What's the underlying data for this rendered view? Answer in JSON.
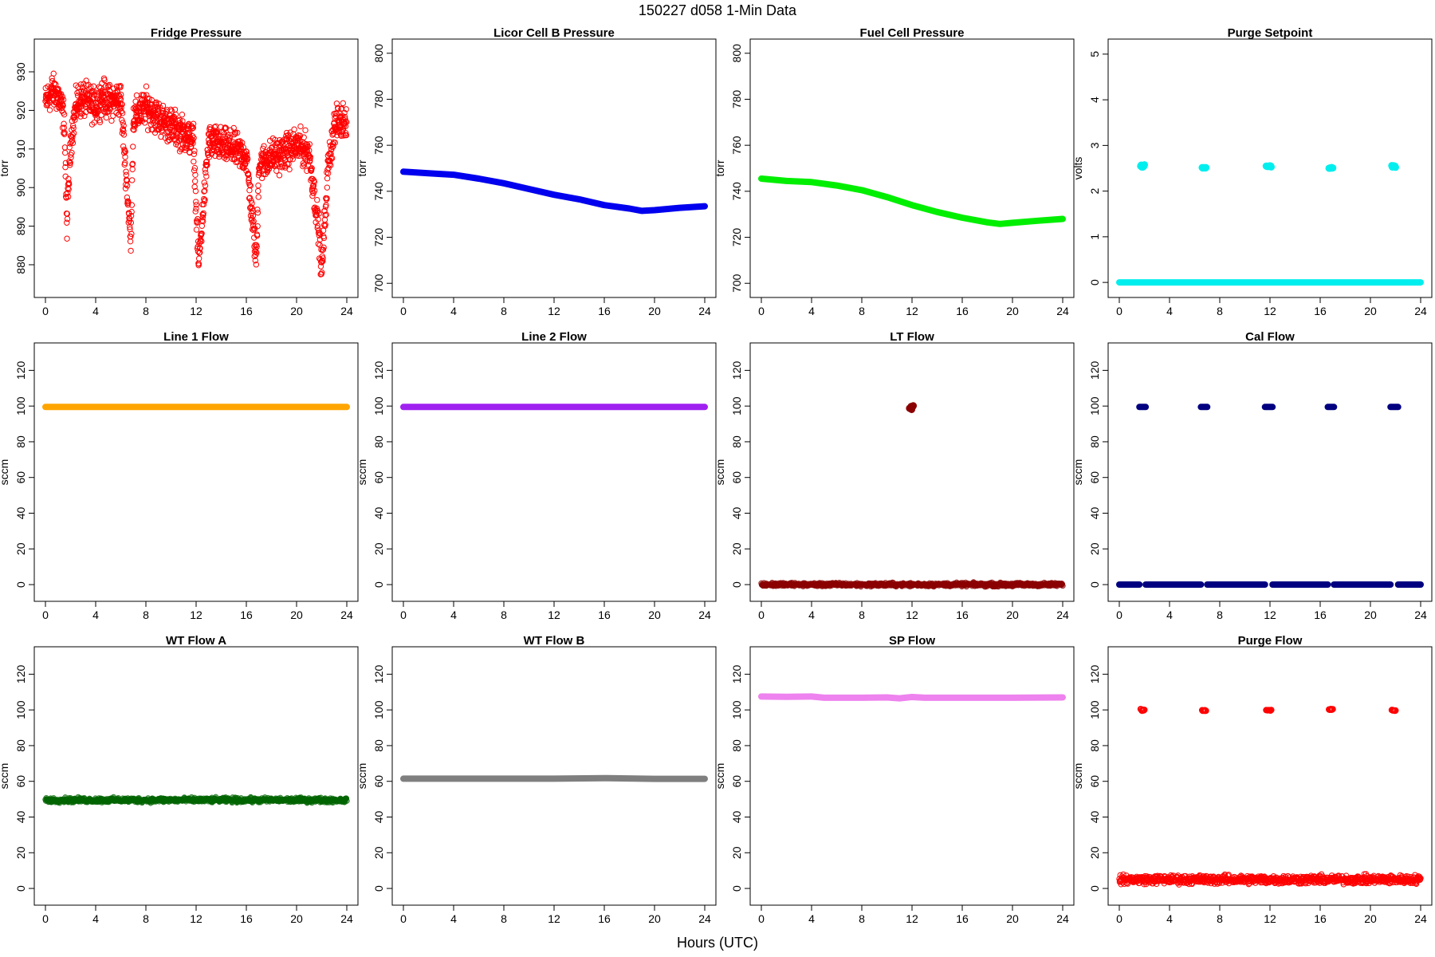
{
  "figure": {
    "title": "150227   d058   1-Min Data",
    "xlabel": "Hours (UTC)"
  },
  "chart_data": [
    {
      "type": "scatter",
      "title": "Fridge Pressure",
      "ylabel": "torr",
      "xlim": [
        0,
        24
      ],
      "ylim": [
        874,
        936
      ],
      "xticks": [
        0,
        4,
        8,
        12,
        16,
        20,
        24
      ],
      "yticks": [
        880,
        890,
        900,
        910,
        920,
        930
      ],
      "color": "#ff0000",
      "marker": "open-circle",
      "series": [
        {
          "x": [
            0.0,
            0.5,
            1.0,
            1.5,
            1.7,
            2.0,
            2.5,
            3.0,
            4.0,
            4.5,
            5.0,
            6.0,
            6.5,
            6.8,
            7.0,
            8.0,
            9.0,
            10.0,
            11.0,
            11.8,
            12.0,
            12.2,
            13.0,
            14.0,
            15.0,
            16.0,
            16.8,
            17.0,
            18.0,
            19.0,
            20.0,
            21.0,
            21.8,
            22.0,
            22.5,
            23.0,
            24.0
          ],
          "y": [
            922,
            925,
            924,
            918,
            890,
            912,
            922,
            923,
            921,
            924,
            922,
            923,
            900,
            885,
            918,
            921,
            918,
            916,
            914,
            912,
            895,
            880,
            912,
            911,
            910,
            908,
            881,
            906,
            908,
            909,
            911,
            909,
            888,
            878,
            905,
            916,
            918
          ]
        }
      ]
    },
    {
      "type": "scatter",
      "title": "Licor Cell B Pressure",
      "ylabel": "torr",
      "xlim": [
        0,
        24
      ],
      "ylim": [
        698,
        802
      ],
      "xticks": [
        0,
        4,
        8,
        12,
        16,
        20,
        24
      ],
      "yticks": [
        700,
        720,
        740,
        760,
        780,
        800
      ],
      "color": "#0000ee",
      "marker": "filled-line",
      "series": [
        {
          "x": [
            0,
            2,
            4,
            6,
            8,
            10,
            12,
            14,
            16,
            18,
            19,
            20,
            22,
            24
          ],
          "y": [
            748.5,
            747.8,
            747.2,
            745.5,
            743.5,
            741.0,
            738.5,
            736.5,
            734.0,
            732.5,
            731.5,
            731.8,
            732.8,
            733.5
          ]
        }
      ]
    },
    {
      "type": "scatter",
      "title": "Fuel Cell Pressure",
      "ylabel": "torr",
      "xlim": [
        0,
        24
      ],
      "ylim": [
        698,
        802
      ],
      "xticks": [
        0,
        4,
        8,
        12,
        16,
        20,
        24
      ],
      "yticks": [
        700,
        720,
        740,
        760,
        780,
        800
      ],
      "color": "#00ee00",
      "marker": "filled-line",
      "series": [
        {
          "x": [
            0,
            2,
            4,
            6,
            8,
            10,
            12,
            14,
            16,
            18,
            19,
            20,
            22,
            24
          ],
          "y": [
            745.5,
            744.5,
            744.0,
            742.5,
            740.5,
            737.5,
            734.0,
            731.0,
            728.5,
            726.5,
            725.8,
            726.3,
            727.2,
            728.0
          ]
        }
      ]
    },
    {
      "type": "scatter",
      "title": "Purge Setpoint",
      "ylabel": "volts",
      "xlim": [
        0,
        24
      ],
      "ylim": [
        -0.12,
        5.12
      ],
      "xticks": [
        0,
        4,
        8,
        12,
        16,
        20,
        24
      ],
      "yticks": [
        0,
        1,
        2,
        3,
        4,
        5
      ],
      "color": "#00eeee",
      "marker": "filled-line",
      "series": [
        {
          "x": [
            0,
            24
          ],
          "y": [
            0,
            0
          ]
        },
        {
          "x": [
            1.7,
            2.0
          ],
          "y": [
            2.52,
            2.58
          ],
          "style": "cluster"
        },
        {
          "x": [
            6.6,
            6.9
          ],
          "y": [
            2.5,
            2.52
          ],
          "style": "cluster"
        },
        {
          "x": [
            11.7,
            12.1
          ],
          "y": [
            2.52,
            2.56
          ],
          "style": "cluster"
        },
        {
          "x": [
            16.7,
            17.0
          ],
          "y": [
            2.5,
            2.52
          ],
          "style": "cluster"
        },
        {
          "x": [
            21.7,
            22.0
          ],
          "y": [
            2.52,
            2.56
          ],
          "style": "cluster"
        }
      ]
    },
    {
      "type": "scatter",
      "title": "Line 1 Flow",
      "ylabel": "sccm",
      "xlim": [
        0,
        24
      ],
      "ylim": [
        -4,
        130
      ],
      "xticks": [
        0,
        4,
        8,
        12,
        16,
        20,
        24
      ],
      "yticks": [
        0,
        20,
        40,
        60,
        80,
        100,
        120
      ],
      "color": "#ffa500",
      "marker": "filled-line",
      "series": [
        {
          "x": [
            0,
            24
          ],
          "y": [
            99.5,
            99.5
          ]
        }
      ]
    },
    {
      "type": "scatter",
      "title": "Line 2 Flow",
      "ylabel": "sccm",
      "xlim": [
        0,
        24
      ],
      "ylim": [
        -4,
        130
      ],
      "xticks": [
        0,
        4,
        8,
        12,
        16,
        20,
        24
      ],
      "yticks": [
        0,
        20,
        40,
        60,
        80,
        100,
        120
      ],
      "color": "#a020f0",
      "marker": "filled-line",
      "series": [
        {
          "x": [
            0,
            24
          ],
          "y": [
            99.5,
            99.5
          ]
        }
      ]
    },
    {
      "type": "scatter",
      "title": "LT Flow",
      "ylabel": "sccm",
      "xlim": [
        0,
        24
      ],
      "ylim": [
        -4,
        130
      ],
      "xticks": [
        0,
        4,
        8,
        12,
        16,
        20,
        24
      ],
      "yticks": [
        0,
        20,
        40,
        60,
        80,
        100,
        120
      ],
      "color": "#8b0000",
      "marker": "filled-line",
      "series": [
        {
          "x": [
            0,
            24
          ],
          "y": [
            0,
            0
          ],
          "style": "band",
          "spread": 1.5
        },
        {
          "x": [
            11.8,
            12.1
          ],
          "y": [
            98,
            101
          ],
          "style": "cluster"
        }
      ]
    },
    {
      "type": "scatter",
      "title": "Cal Flow",
      "ylabel": "sccm",
      "xlim": [
        0,
        24
      ],
      "ylim": [
        -4,
        130
      ],
      "xticks": [
        0,
        4,
        8,
        12,
        16,
        20,
        24
      ],
      "yticks": [
        0,
        20,
        40,
        60,
        80,
        100,
        120
      ],
      "color": "#000080",
      "marker": "filled-line",
      "series": [
        {
          "x": [
            0,
            1.6
          ],
          "y": [
            0,
            0
          ]
        },
        {
          "x": [
            2.1,
            6.5
          ],
          "y": [
            0,
            0
          ]
        },
        {
          "x": [
            7.0,
            11.6
          ],
          "y": [
            0,
            0
          ]
        },
        {
          "x": [
            12.2,
            16.6
          ],
          "y": [
            0,
            0
          ]
        },
        {
          "x": [
            17.1,
            21.6
          ],
          "y": [
            0,
            0
          ]
        },
        {
          "x": [
            22.2,
            24
          ],
          "y": [
            0,
            0
          ]
        },
        {
          "x": [
            1.6,
            2.1
          ],
          "y": [
            99.5,
            99.5
          ]
        },
        {
          "x": [
            6.5,
            7.0
          ],
          "y": [
            99.5,
            99.5
          ]
        },
        {
          "x": [
            11.6,
            12.2
          ],
          "y": [
            99.5,
            99.5
          ]
        },
        {
          "x": [
            16.6,
            17.1
          ],
          "y": [
            99.5,
            99.5
          ]
        },
        {
          "x": [
            21.6,
            22.2
          ],
          "y": [
            99.5,
            99.5
          ]
        }
      ]
    },
    {
      "type": "scatter",
      "title": "WT Flow A",
      "ylabel": "sccm",
      "xlim": [
        0,
        24
      ],
      "ylim": [
        -4,
        130
      ],
      "xticks": [
        0,
        4,
        8,
        12,
        16,
        20,
        24
      ],
      "yticks": [
        0,
        20,
        40,
        60,
        80,
        100,
        120
      ],
      "color": "#006400",
      "marker": "filled-line",
      "series": [
        {
          "x": [
            0,
            24
          ],
          "y": [
            49.5,
            49.5
          ],
          "style": "band",
          "spread": 2
        }
      ]
    },
    {
      "type": "scatter",
      "title": "WT Flow B",
      "ylabel": "sccm",
      "xlim": [
        0,
        24
      ],
      "ylim": [
        -4,
        130
      ],
      "xticks": [
        0,
        4,
        8,
        12,
        16,
        20,
        24
      ],
      "yticks": [
        0,
        20,
        40,
        60,
        80,
        100,
        120
      ],
      "color": "#7f7f7f",
      "marker": "filled-line",
      "series": [
        {
          "x": [
            0,
            12,
            16,
            20,
            24
          ],
          "y": [
            61.5,
            61.5,
            61.8,
            61.4,
            61.4
          ]
        }
      ]
    },
    {
      "type": "scatter",
      "title": "SP Flow",
      "ylabel": "sccm",
      "xlim": [
        0,
        24
      ],
      "ylim": [
        -4,
        130
      ],
      "xticks": [
        0,
        4,
        8,
        12,
        16,
        20,
        24
      ],
      "yticks": [
        0,
        20,
        40,
        60,
        80,
        100,
        120
      ],
      "color": "#ee82ee",
      "marker": "filled-line",
      "series": [
        {
          "x": [
            0,
            2,
            4,
            5,
            8,
            10,
            11,
            12,
            13,
            16,
            20,
            24
          ],
          "y": [
            107.5,
            107.3,
            107.5,
            106.8,
            106.8,
            107.0,
            106.5,
            107.2,
            106.8,
            106.8,
            106.8,
            107.0
          ]
        }
      ]
    },
    {
      "type": "scatter",
      "title": "Purge Flow",
      "ylabel": "sccm",
      "xlim": [
        0,
        24
      ],
      "ylim": [
        -4,
        130
      ],
      "xticks": [
        0,
        4,
        8,
        12,
        16,
        20,
        24
      ],
      "yticks": [
        0,
        20,
        40,
        60,
        80,
        100,
        120
      ],
      "color": "#ff0000",
      "marker": "open-circle",
      "series": [
        {
          "x": [
            0,
            24
          ],
          "y": [
            5,
            5
          ],
          "style": "band",
          "spread": 3.5
        },
        {
          "x": [
            1.7,
            2.0
          ],
          "y": [
            99.5,
            100.5
          ],
          "style": "cluster"
        },
        {
          "x": [
            6.6,
            6.9
          ],
          "y": [
            99.5,
            100.0
          ],
          "style": "cluster"
        },
        {
          "x": [
            11.7,
            12.1
          ],
          "y": [
            99.5,
            100.0
          ],
          "style": "cluster"
        },
        {
          "x": [
            16.7,
            17.0
          ],
          "y": [
            100.0,
            100.5
          ],
          "style": "cluster"
        },
        {
          "x": [
            21.7,
            22.0
          ],
          "y": [
            99.5,
            100.0
          ],
          "style": "cluster"
        }
      ]
    }
  ]
}
